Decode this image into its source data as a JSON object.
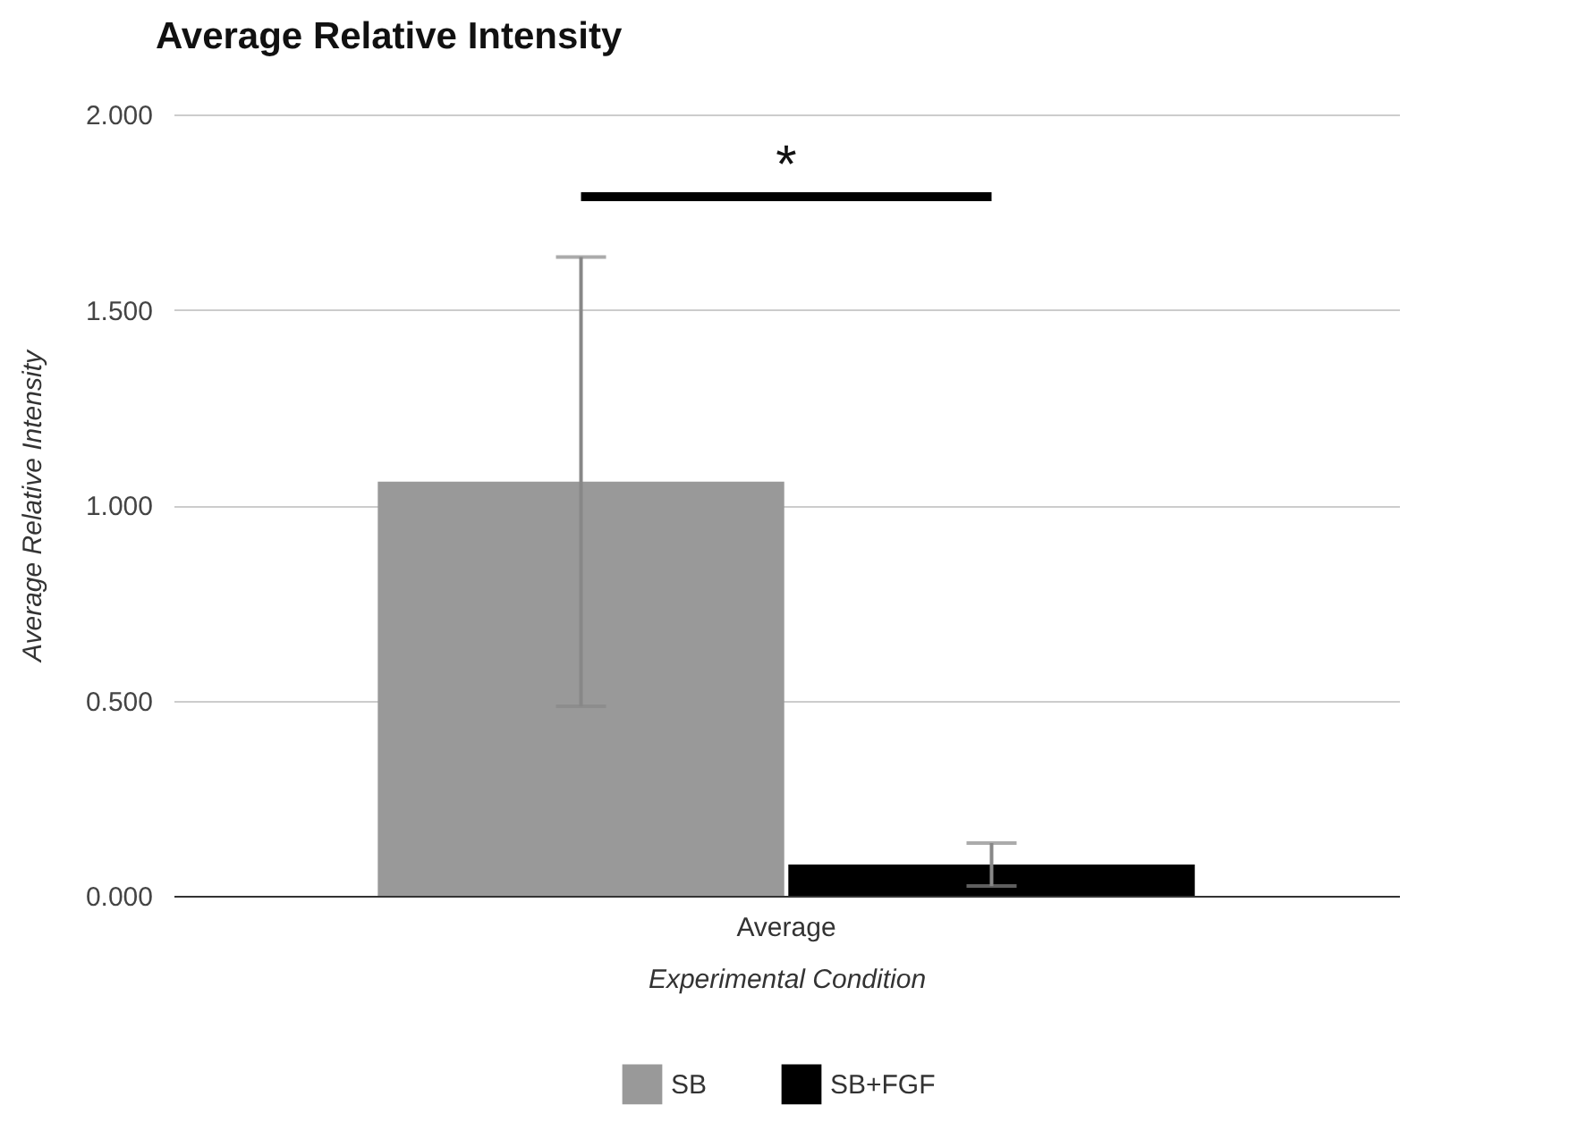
{
  "chart_data": {
    "type": "bar",
    "title": "Average Relative Intensity",
    "xlabel": "Experimental Condition",
    "ylabel": "Average Relative Intensity",
    "categories": [
      "Average"
    ],
    "series": [
      {
        "name": "SB",
        "color": "#999999",
        "values": [
          1.06
        ],
        "errors": [
          0.575
        ]
      },
      {
        "name": "SB+FGF",
        "color": "#000000",
        "values": [
          0.08
        ],
        "errors": [
          0.055
        ]
      }
    ],
    "ylim": [
      0,
      2
    ],
    "yticks": [
      {
        "value": 0,
        "label": "0.000"
      },
      {
        "value": 0.5,
        "label": "0.500"
      },
      {
        "value": 1,
        "label": "1.000"
      },
      {
        "value": 1.5,
        "label": "1.500"
      },
      {
        "value": 2,
        "label": "2.000"
      }
    ],
    "grid": "y",
    "legend": "bottom",
    "annotations": [
      "*"
    ]
  }
}
